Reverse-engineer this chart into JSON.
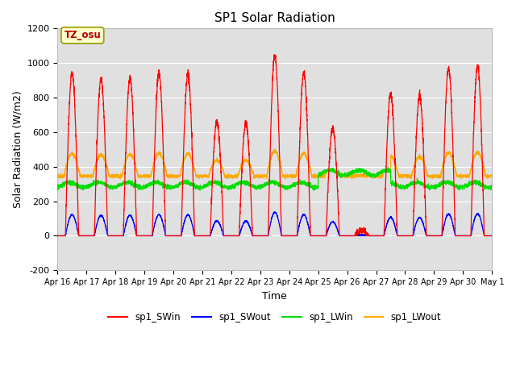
{
  "title": "SP1 Solar Radiation",
  "xlabel": "Time",
  "ylabel": "Solar Radiation (W/m2)",
  "ylim": [
    -200,
    1200
  ],
  "yticks": [
    -200,
    0,
    200,
    400,
    600,
    800,
    1000,
    1200
  ],
  "xtick_labels": [
    "Apr 16",
    "Apr 17",
    "Apr 18",
    "Apr 19",
    "Apr 20",
    "Apr 21",
    "Apr 22",
    "Apr 23",
    "Apr 24",
    "Apr 25",
    "Apr 26",
    "Apr 27",
    "Apr 28",
    "Apr 29",
    "Apr 30",
    "May 1"
  ],
  "colors": {
    "sp1_SWin": "#ff0000",
    "sp1_SWout": "#0000ff",
    "sp1_LWin": "#00dd00",
    "sp1_LWout": "#ffaa00"
  },
  "bg_color": "#e0e0e0",
  "annotation_text": "TZ_osu",
  "annotation_color": "#aa0000",
  "annotation_bg": "#ffffcc",
  "annotation_border": "#999900",
  "num_days": 15,
  "points_per_day": 288,
  "sw_peaks": [
    940,
    910,
    910,
    940,
    930,
    660,
    650,
    1045,
    945,
    620,
    30,
    820,
    810,
    970,
    980
  ],
  "legend_entries": [
    "sp1_SWin",
    "sp1_SWout",
    "sp1_LWin",
    "sp1_LWout"
  ]
}
